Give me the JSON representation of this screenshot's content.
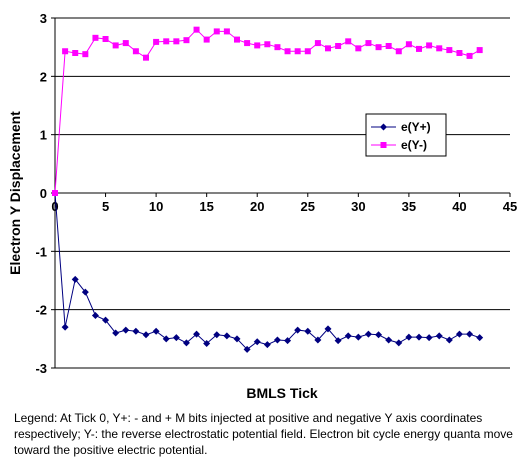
{
  "chart_data": {
    "type": "line",
    "title": "",
    "xlabel": "BMLS Tick",
    "ylabel": "Electron Y Displacement",
    "xlim": [
      0,
      45
    ],
    "ylim": [
      -3,
      3
    ],
    "xticks": [
      0,
      5,
      10,
      15,
      20,
      25,
      30,
      35,
      40,
      45
    ],
    "yticks": [
      3,
      2,
      1,
      0,
      -1,
      -2,
      -3
    ],
    "grid": "horizontal major gridlines",
    "legend_position": "right",
    "x": [
      0,
      1,
      2,
      3,
      4,
      5,
      6,
      7,
      8,
      9,
      10,
      11,
      12,
      13,
      14,
      15,
      16,
      17,
      18,
      19,
      20,
      21,
      22,
      23,
      24,
      25,
      26,
      27,
      28,
      29,
      30,
      31,
      32,
      33,
      34,
      35,
      36,
      37,
      38,
      39,
      40,
      41,
      42
    ],
    "series": [
      {
        "name": "e(Y+)",
        "color": "#000080",
        "marker": "diamond",
        "values": [
          0,
          -2.3,
          -1.48,
          -1.7,
          -2.1,
          -2.18,
          -2.4,
          -2.35,
          -2.37,
          -2.43,
          -2.37,
          -2.5,
          -2.48,
          -2.57,
          -2.42,
          -2.58,
          -2.43,
          -2.45,
          -2.5,
          -2.68,
          -2.55,
          -2.6,
          -2.52,
          -2.53,
          -2.35,
          -2.37,
          -2.52,
          -2.33,
          -2.53,
          -2.45,
          -2.47,
          -2.42,
          -2.43,
          -2.52,
          -2.57,
          -2.47,
          -2.47,
          -2.48,
          -2.45,
          -2.52,
          -2.42,
          -2.42,
          -2.48
        ]
      },
      {
        "name": "e(Y-)",
        "color": "#ff00ff",
        "marker": "square",
        "values": [
          0,
          2.43,
          2.4,
          2.38,
          2.66,
          2.64,
          2.53,
          2.57,
          2.43,
          2.32,
          2.59,
          2.6,
          2.6,
          2.62,
          2.8,
          2.63,
          2.77,
          2.77,
          2.63,
          2.57,
          2.53,
          2.55,
          2.5,
          2.43,
          2.43,
          2.43,
          2.57,
          2.48,
          2.52,
          2.6,
          2.48,
          2.57,
          2.5,
          2.52,
          2.43,
          2.55,
          2.47,
          2.53,
          2.48,
          2.45,
          2.4,
          2.35,
          2.45
        ]
      }
    ]
  },
  "caption": "Legend: At Tick 0, Y+: - and + M bits injected at positive and negative Y axis coordinates respectively; Y-: the reverse electrostatic potential field. Electron bit cycle energy quanta move toward the positive electric potential."
}
